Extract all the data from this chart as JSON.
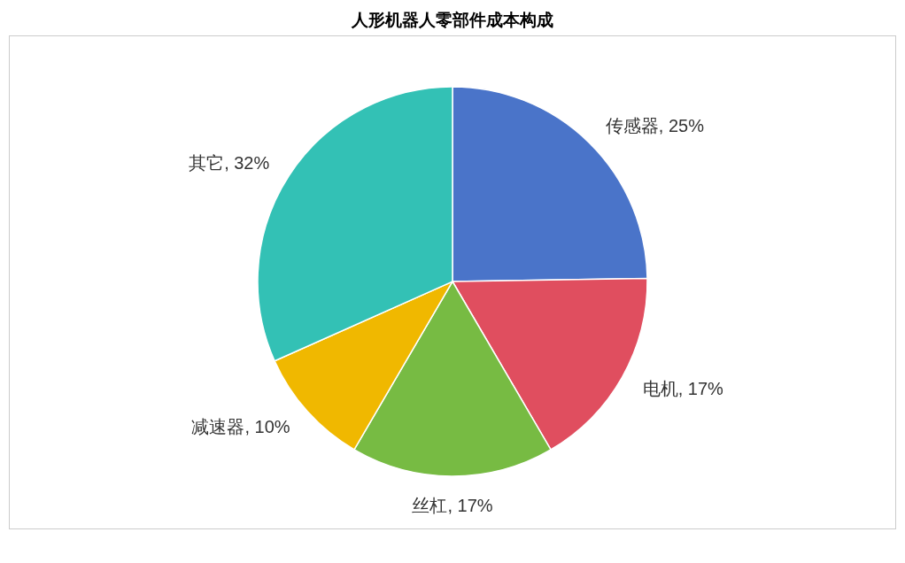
{
  "chart_data": {
    "type": "pie",
    "title": "人形机器人零部件成本构成",
    "categories": [
      "传感器",
      "电机",
      "丝杠",
      "减速器",
      "其它"
    ],
    "values": [
      25,
      17,
      17,
      10,
      32
    ],
    "colors": [
      "#4a74c9",
      "#e04e5f",
      "#77bb43",
      "#f0b800",
      "#33c1b5"
    ],
    "value_labels": [
      "25%",
      "17%",
      "17%",
      "10%",
      "32%"
    ]
  }
}
